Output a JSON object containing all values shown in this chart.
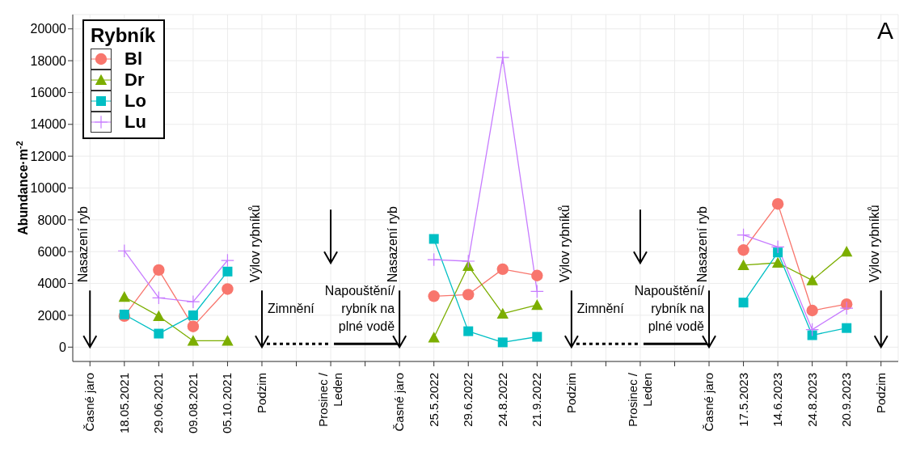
{
  "chart_data": {
    "type": "line",
    "ylabel": "Abundance·m$^{-2}$",
    "legend_title": "Rybník",
    "legend": "top left",
    "grid": true,
    "categories": [
      "Časné jaro",
      "18.05.2021",
      "29.06.2021",
      "09.08.2021",
      "05.10.2021",
      "Podzim",
      null,
      "Prosinec / Leden",
      null,
      "Časné jaro",
      "25.5.2022",
      "29.6.2022",
      "24.8.2022",
      "21.9.2022",
      "Podzim",
      null,
      "Prosinec / Leden",
      null,
      "Časné jaro",
      "17.5.2023",
      "14.6.2023",
      "24.8.2023",
      "20.9.2023",
      "Podzim"
    ],
    "series": [
      {
        "name": "Bl",
        "color": "#f8766d",
        "marker": "circle",
        "values": [
          null,
          1950,
          4850,
          1300,
          3650,
          null,
          null,
          null,
          null,
          null,
          3200,
          3300,
          4900,
          4500,
          null,
          null,
          null,
          null,
          null,
          6100,
          9000,
          2300,
          2700,
          null
        ]
      },
      {
        "name": "Dr",
        "color": "#7cae00",
        "marker": "triangle",
        "values": [
          null,
          3150,
          1950,
          400,
          400,
          null,
          null,
          null,
          null,
          null,
          600,
          5100,
          2100,
          2650,
          null,
          null,
          null,
          null,
          null,
          5150,
          5300,
          4200,
          6000,
          null
        ]
      },
      {
        "name": "Lo",
        "color": "#00bfc4",
        "marker": "square",
        "values": [
          null,
          2050,
          850,
          2000,
          4750,
          null,
          null,
          null,
          null,
          null,
          6800,
          1000,
          300,
          650,
          null,
          null,
          null,
          null,
          null,
          2800,
          5950,
          750,
          1200,
          null
        ]
      },
      {
        "name": "Lu",
        "color": "#c77cff",
        "marker": "cross",
        "values": [
          null,
          6050,
          3100,
          2850,
          5450,
          null,
          null,
          null,
          null,
          null,
          5500,
          5400,
          18200,
          3500,
          null,
          null,
          null,
          null,
          null,
          7050,
          6300,
          1100,
          2450,
          null
        ]
      }
    ],
    "ylim": [
      -900,
      20900
    ],
    "yticks": [
      0,
      2000,
      4000,
      6000,
      8000,
      10000,
      12000,
      14000,
      16000,
      18000,
      20000
    ],
    "annotations": [
      "A",
      "Nasazení ryb",
      "Výlov rybníků",
      "Zimnění",
      "Napouštění/ rybník na plné vodě",
      "Nasazení ryb",
      "Výlov rybníků",
      "Zimnění",
      "Napouštění/ rybník na plné vodě",
      "Nasazení ryb",
      "Výlov rybníků"
    ]
  }
}
